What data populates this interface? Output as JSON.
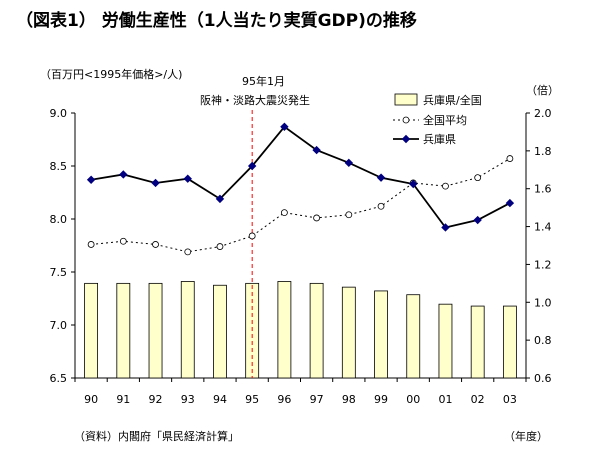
{
  "chart_data": {
    "type": "bar+line",
    "title": "（図表1） 労働生産性（1人当たり実質GDP)の推移",
    "y_left_label": "（百万円<1995年価格>/人)",
    "y_right_label": "（倍）",
    "x_unit": "（年度）",
    "source": "（資料）内閣府「県民経済計算」",
    "annotation": {
      "line1": "95年1月",
      "line2": "阪神・淡路大震災発生",
      "x": "95"
    },
    "categories": [
      "90",
      "91",
      "92",
      "93",
      "94",
      "95",
      "96",
      "97",
      "98",
      "99",
      "00",
      "01",
      "02",
      "03"
    ],
    "y_left": {
      "min": 6.5,
      "max": 9.0,
      "ticks": [
        "6.5",
        "7.0",
        "7.5",
        "8.0",
        "8.5",
        "9.0"
      ]
    },
    "y_right": {
      "min": 0.6,
      "max": 2.0,
      "ticks": [
        "0.6",
        "0.8",
        "1.0",
        "1.2",
        "1.4",
        "1.6",
        "1.8",
        "2.0"
      ]
    },
    "grid": false,
    "legend_position": "top-right",
    "series": [
      {
        "name": "兵庫県/全国",
        "type": "bar",
        "axis": "right",
        "color": "#ffffcc",
        "values": [
          1.1,
          1.1,
          1.1,
          1.11,
          1.09,
          1.1,
          1.11,
          1.1,
          1.08,
          1.06,
          1.04,
          0.99,
          0.98,
          0.98
        ]
      },
      {
        "name": "全国平均",
        "type": "line-dotted",
        "axis": "left",
        "color": "#000000",
        "values": [
          7.76,
          7.79,
          7.76,
          7.69,
          7.74,
          7.84,
          8.06,
          8.01,
          8.04,
          8.12,
          8.34,
          8.31,
          8.39,
          8.57
        ]
      },
      {
        "name": "兵庫県",
        "type": "line",
        "axis": "left",
        "color": "#000080",
        "values": [
          8.37,
          8.42,
          8.34,
          8.38,
          8.19,
          8.5,
          8.87,
          8.65,
          8.53,
          8.39,
          8.33,
          7.92,
          7.99,
          8.15
        ]
      }
    ]
  }
}
